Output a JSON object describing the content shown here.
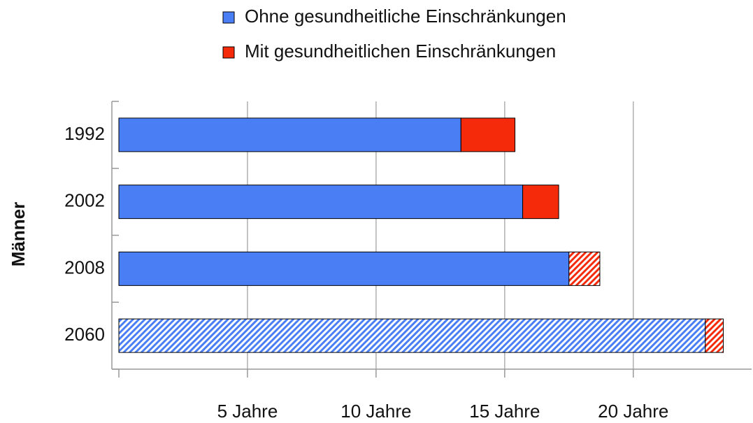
{
  "chart_data": {
    "type": "stacked-barh",
    "y_label": "Männer",
    "categories": [
      "1992",
      "2002",
      "2008",
      "2060"
    ],
    "series": [
      {
        "name": "Ohne gesundheitliche Einschränkungen",
        "color": "#4a7ef5",
        "values": [
          13.3,
          15.7,
          17.5,
          22.8
        ],
        "hatched": [
          false,
          false,
          false,
          true
        ]
      },
      {
        "name": "Mit gesundheitlichen Einschränkungen",
        "color": "#f52a0a",
        "values": [
          2.1,
          1.4,
          1.2,
          0.7
        ],
        "hatched": [
          false,
          false,
          true,
          true
        ]
      }
    ],
    "xlim": [
      0,
      24.6
    ],
    "xticks": [
      {
        "value": 5,
        "label": "5 Jahre"
      },
      {
        "value": 10,
        "label": "10 Jahre"
      },
      {
        "value": 15,
        "label": "15 Jahre"
      },
      {
        "value": 20,
        "label": "20 Jahre"
      }
    ],
    "grid": true,
    "legend": "top"
  }
}
